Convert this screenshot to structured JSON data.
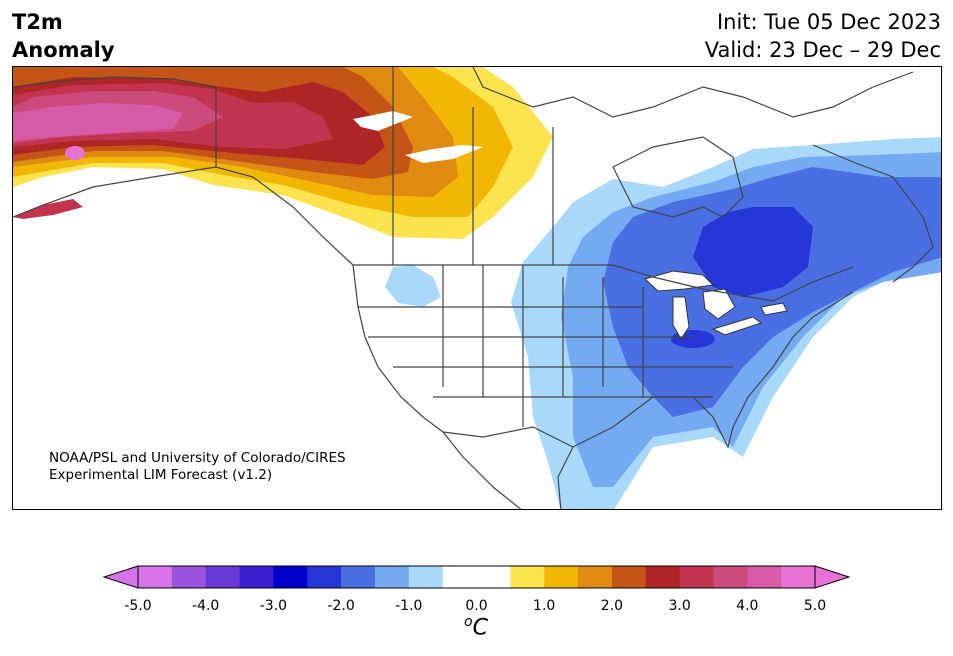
{
  "header": {
    "title_line1": "T2m",
    "title_line2": "Anomaly",
    "init": "Init: Tue 05 Dec 2023",
    "valid": "Valid: 23 Dec – 29 Dec"
  },
  "credit": {
    "line1": "NOAA/PSL and University of Colorado/CIRES",
    "line2": "Experimental LIM Forecast (v1.2)"
  },
  "colorbar": {
    "ticks": [
      "-5.0",
      "-4.0",
      "-3.0",
      "-2.0",
      "-1.0",
      "0.0",
      "1.0",
      "2.0",
      "3.0",
      "4.0",
      "5.0"
    ],
    "units_base": "C",
    "units_sup": "o",
    "colors": [
      "#d773e8",
      "#9b52e0",
      "#6a3ad8",
      "#3c1fd0",
      "#0000cc",
      "#2636d8",
      "#4a6fe3",
      "#74aaf2",
      "#a9d9fa",
      "#ffffff",
      "#ffffff",
      "#fde34d",
      "#f2b705",
      "#e08a12",
      "#c45516",
      "#b02525",
      "#c23450",
      "#cc4a7c",
      "#d75aa8",
      "#e772d4"
    ],
    "extend_low": "#d773e8",
    "extend_high": "#e772d4"
  },
  "anomaly_colors": {
    "warm_1": "#fde34d",
    "warm_2": "#f2b705",
    "warm_3": "#e08a12",
    "warm_4": "#c45516",
    "warm_5": "#b02525",
    "warm_6": "#c23450",
    "warm_7": "#cc4a7c",
    "warm_8": "#d75aa8",
    "warm_9": "#e772d4",
    "cold_1": "#a9d9fa",
    "cold_2": "#74aaf2",
    "cold_3": "#4a6fe3",
    "cold_4": "#2636d8"
  }
}
